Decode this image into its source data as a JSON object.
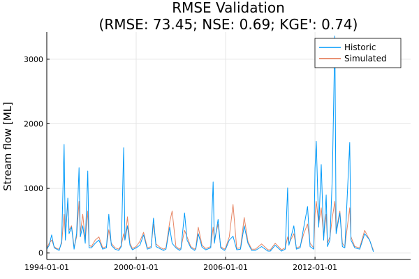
{
  "chart_data": {
    "type": "line",
    "title": "RMSE Validation",
    "subtitle": "(RMSE: 73.45; NSE: 0.69; KGE': 0.74)",
    "xlabel": "",
    "ylabel": "Stream flow [ML]",
    "x_axis": "date",
    "xlim": [
      "1994-01-01",
      "2018-06-01"
    ],
    "ylim": [
      -100,
      3420
    ],
    "x_ticks": [
      "1994-01-01",
      "2000-01-01",
      "2006-01-01",
      "2012-01-01"
    ],
    "y_ticks": [
      0,
      1000,
      2000,
      3000
    ],
    "grid": true,
    "legend_position": "top-right",
    "series": [
      {
        "name": "Historic",
        "color": "#009AFA",
        "points": [
          [
            "1994-01-01",
            60
          ],
          [
            "1994-03-01",
            120
          ],
          [
            "1994-05-01",
            280
          ],
          [
            "1994-07-01",
            80
          ],
          [
            "1994-09-01",
            60
          ],
          [
            "1994-11-01",
            40
          ],
          [
            "1995-01-01",
            180
          ],
          [
            "1995-03-01",
            1680
          ],
          [
            "1995-04-01",
            200
          ],
          [
            "1995-06-01",
            850
          ],
          [
            "1995-07-01",
            300
          ],
          [
            "1995-09-01",
            400
          ],
          [
            "1995-11-01",
            60
          ],
          [
            "1996-01-01",
            300
          ],
          [
            "1996-03-01",
            1320
          ],
          [
            "1996-04-01",
            250
          ],
          [
            "1996-06-01",
            420
          ],
          [
            "1996-08-01",
            150
          ],
          [
            "1996-10-01",
            1270
          ],
          [
            "1996-11-01",
            80
          ],
          [
            "1997-01-01",
            80
          ],
          [
            "1997-04-01",
            150
          ],
          [
            "1997-07-01",
            200
          ],
          [
            "1997-10-01",
            60
          ],
          [
            "1998-01-01",
            80
          ],
          [
            "1998-03-01",
            600
          ],
          [
            "1998-05-01",
            120
          ],
          [
            "1998-08-01",
            60
          ],
          [
            "1998-11-01",
            40
          ],
          [
            "1999-01-01",
            100
          ],
          [
            "1999-03-01",
            1630
          ],
          [
            "1999-04-01",
            200
          ],
          [
            "1999-06-01",
            420
          ],
          [
            "1999-08-01",
            120
          ],
          [
            "1999-10-01",
            50
          ],
          [
            "2000-01-01",
            80
          ],
          [
            "2000-04-01",
            120
          ],
          [
            "2000-07-01",
            280
          ],
          [
            "2000-10-01",
            60
          ],
          [
            "2001-01-01",
            80
          ],
          [
            "2001-03-01",
            540
          ],
          [
            "2001-05-01",
            100
          ],
          [
            "2001-08-01",
            70
          ],
          [
            "2001-11-01",
            40
          ],
          [
            "2002-01-01",
            60
          ],
          [
            "2002-04-01",
            400
          ],
          [
            "2002-06-01",
            150
          ],
          [
            "2002-09-01",
            80
          ],
          [
            "2002-12-01",
            40
          ],
          [
            "2003-01-01",
            60
          ],
          [
            "2003-04-01",
            620
          ],
          [
            "2003-06-01",
            200
          ],
          [
            "2003-09-01",
            80
          ],
          [
            "2003-12-01",
            40
          ],
          [
            "2004-01-01",
            60
          ],
          [
            "2004-03-01",
            300
          ],
          [
            "2004-06-01",
            90
          ],
          [
            "2004-09-01",
            50
          ],
          [
            "2005-01-01",
            80
          ],
          [
            "2005-03-01",
            1100
          ],
          [
            "2005-04-01",
            150
          ],
          [
            "2005-07-01",
            520
          ],
          [
            "2005-09-01",
            80
          ],
          [
            "2005-12-01",
            40
          ],
          [
            "2006-01-01",
            60
          ],
          [
            "2006-04-01",
            200
          ],
          [
            "2006-07-01",
            260
          ],
          [
            "2006-10-01",
            50
          ],
          [
            "2007-01-01",
            60
          ],
          [
            "2007-04-01",
            420
          ],
          [
            "2007-07-01",
            150
          ],
          [
            "2007-10-01",
            40
          ],
          [
            "2008-01-01",
            40
          ],
          [
            "2008-06-01",
            100
          ],
          [
            "2008-11-01",
            30
          ],
          [
            "2009-01-01",
            30
          ],
          [
            "2009-05-01",
            120
          ],
          [
            "2009-10-01",
            30
          ],
          [
            "2010-01-01",
            60
          ],
          [
            "2010-03-01",
            1010
          ],
          [
            "2010-04-01",
            120
          ],
          [
            "2010-08-01",
            420
          ],
          [
            "2010-10-01",
            60
          ],
          [
            "2011-01-01",
            80
          ],
          [
            "2011-04-01",
            400
          ],
          [
            "2011-07-01",
            720
          ],
          [
            "2011-09-01",
            100
          ],
          [
            "2011-12-01",
            60
          ],
          [
            "2012-01-01",
            1310
          ],
          [
            "2012-02-01",
            1730
          ],
          [
            "2012-04-01",
            400
          ],
          [
            "2012-06-01",
            1370
          ],
          [
            "2012-08-01",
            200
          ],
          [
            "2012-10-01",
            900
          ],
          [
            "2012-11-01",
            100
          ],
          [
            "2013-01-01",
            200
          ],
          [
            "2013-03-01",
            1190
          ],
          [
            "2013-05-01",
            3360
          ],
          [
            "2013-06-01",
            300
          ],
          [
            "2013-09-01",
            620
          ],
          [
            "2013-11-01",
            100
          ],
          [
            "2014-01-01",
            80
          ],
          [
            "2014-05-01",
            1710
          ],
          [
            "2014-06-01",
            200
          ],
          [
            "2014-09-01",
            80
          ],
          [
            "2015-01-01",
            60
          ],
          [
            "2015-05-01",
            300
          ],
          [
            "2015-09-01",
            200
          ],
          [
            "2015-12-01",
            20
          ]
        ]
      },
      {
        "name": "Simulated",
        "color": "#E26F46",
        "points": [
          [
            "1994-01-01",
            80
          ],
          [
            "1994-03-01",
            150
          ],
          [
            "1994-05-01",
            200
          ],
          [
            "1994-07-01",
            100
          ],
          [
            "1994-09-01",
            70
          ],
          [
            "1994-11-01",
            60
          ],
          [
            "1995-01-01",
            150
          ],
          [
            "1995-03-01",
            600
          ],
          [
            "1995-04-01",
            250
          ],
          [
            "1995-06-01",
            780
          ],
          [
            "1995-07-01",
            350
          ],
          [
            "1995-09-01",
            420
          ],
          [
            "1995-11-01",
            90
          ],
          [
            "1996-01-01",
            250
          ],
          [
            "1996-03-01",
            800
          ],
          [
            "1996-04-01",
            300
          ],
          [
            "1996-06-01",
            600
          ],
          [
            "1996-08-01",
            200
          ],
          [
            "1996-10-01",
            650
          ],
          [
            "1996-11-01",
            120
          ],
          [
            "1997-01-01",
            100
          ],
          [
            "1997-04-01",
            200
          ],
          [
            "1997-07-01",
            250
          ],
          [
            "1997-10-01",
            80
          ],
          [
            "1998-01-01",
            100
          ],
          [
            "1998-03-01",
            360
          ],
          [
            "1998-05-01",
            150
          ],
          [
            "1998-08-01",
            80
          ],
          [
            "1998-11-01",
            60
          ],
          [
            "1999-01-01",
            120
          ],
          [
            "1999-03-01",
            300
          ],
          [
            "1999-04-01",
            200
          ],
          [
            "1999-06-01",
            560
          ],
          [
            "1999-08-01",
            150
          ],
          [
            "1999-10-01",
            70
          ],
          [
            "2000-01-01",
            100
          ],
          [
            "2000-04-01",
            180
          ],
          [
            "2000-07-01",
            320
          ],
          [
            "2000-10-01",
            80
          ],
          [
            "2001-01-01",
            100
          ],
          [
            "2001-03-01",
            450
          ],
          [
            "2001-05-01",
            140
          ],
          [
            "2001-08-01",
            90
          ],
          [
            "2001-11-01",
            60
          ],
          [
            "2002-01-01",
            80
          ],
          [
            "2002-04-01",
            480
          ],
          [
            "2002-06-01",
            650
          ],
          [
            "2002-09-01",
            100
          ],
          [
            "2002-12-01",
            60
          ],
          [
            "2003-01-01",
            80
          ],
          [
            "2003-04-01",
            350
          ],
          [
            "2003-06-01",
            250
          ],
          [
            "2003-09-01",
            100
          ],
          [
            "2003-12-01",
            60
          ],
          [
            "2004-01-01",
            80
          ],
          [
            "2004-03-01",
            400
          ],
          [
            "2004-06-01",
            120
          ],
          [
            "2004-09-01",
            70
          ],
          [
            "2005-01-01",
            100
          ],
          [
            "2005-03-01",
            400
          ],
          [
            "2005-04-01",
            200
          ],
          [
            "2005-07-01",
            450
          ],
          [
            "2005-09-01",
            100
          ],
          [
            "2005-12-01",
            60
          ],
          [
            "2006-01-01",
            80
          ],
          [
            "2006-04-01",
            250
          ],
          [
            "2006-07-01",
            750
          ],
          [
            "2006-10-01",
            70
          ],
          [
            "2007-01-01",
            80
          ],
          [
            "2007-04-01",
            550
          ],
          [
            "2007-07-01",
            180
          ],
          [
            "2007-10-01",
            60
          ],
          [
            "2008-01-01",
            60
          ],
          [
            "2008-06-01",
            140
          ],
          [
            "2008-11-01",
            50
          ],
          [
            "2009-01-01",
            50
          ],
          [
            "2009-05-01",
            150
          ],
          [
            "2009-10-01",
            50
          ],
          [
            "2010-01-01",
            80
          ],
          [
            "2010-03-01",
            250
          ],
          [
            "2010-04-01",
            150
          ],
          [
            "2010-08-01",
            300
          ],
          [
            "2010-10-01",
            80
          ],
          [
            "2011-01-01",
            100
          ],
          [
            "2011-04-01",
            300
          ],
          [
            "2011-07-01",
            450
          ],
          [
            "2011-09-01",
            150
          ],
          [
            "2011-12-01",
            80
          ],
          [
            "2012-01-01",
            600
          ],
          [
            "2012-02-01",
            800
          ],
          [
            "2012-04-01",
            450
          ],
          [
            "2012-06-01",
            700
          ],
          [
            "2012-08-01",
            250
          ],
          [
            "2012-10-01",
            600
          ],
          [
            "2012-11-01",
            150
          ],
          [
            "2013-01-01",
            250
          ],
          [
            "2013-03-01",
            550
          ],
          [
            "2013-05-01",
            800
          ],
          [
            "2013-06-01",
            350
          ],
          [
            "2013-09-01",
            650
          ],
          [
            "2013-11-01",
            150
          ],
          [
            "2014-01-01",
            100
          ],
          [
            "2014-05-01",
            700
          ],
          [
            "2014-06-01",
            250
          ],
          [
            "2014-09-01",
            100
          ],
          [
            "2015-01-01",
            80
          ],
          [
            "2015-05-01",
            350
          ],
          [
            "2015-09-01",
            200
          ],
          [
            "2015-12-01",
            40
          ]
        ]
      }
    ]
  }
}
